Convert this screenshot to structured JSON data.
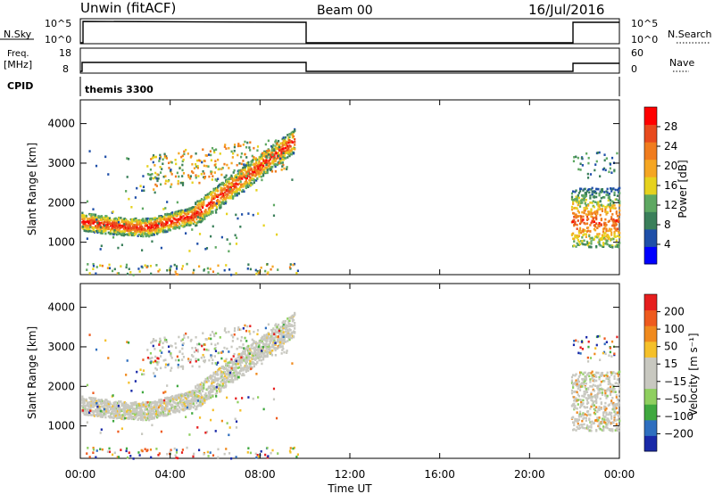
{
  "header": {
    "station": "Unwin (fitACF)",
    "beam": "Beam 00",
    "date": "16/Jul/2016"
  },
  "top_panels": {
    "nsky_label": "N.Sky",
    "nsky_ticks": [
      "10^5",
      "10^0"
    ],
    "nsearch_label": "N.Search",
    "nsearch_ticks": [
      "10^5",
      "10^0"
    ],
    "freq_label": "Freq.",
    "freq_unit": "[MHz]",
    "freq_ticks": [
      "18",
      "8"
    ],
    "nave_label": "Nave",
    "nave_ticks": [
      "60",
      "0"
    ],
    "cpid_label": "CPID",
    "cpid_value": "themis 3300"
  },
  "colors": {
    "power": [
      "#0000ff",
      "#1f4fa8",
      "#3a7f5a",
      "#5ea862",
      "#e6d21e",
      "#f5a623",
      "#f07c1e",
      "#e84a1e",
      "#ff0000"
    ],
    "velocity": [
      "#1a2aa8",
      "#2f6fbf",
      "#3fa83f",
      "#8fcf5f",
      "#c8c8c0",
      "#c8c8c0",
      "#f5c02a",
      "#f08a1e",
      "#ee5a1e",
      "#e61e1e"
    ],
    "grey": "#c8c8c0"
  },
  "chart_data": [
    {
      "type": "heatmap",
      "name": "power",
      "xlabel": "",
      "ylabel": "Slant Range [km]",
      "xlim": [
        0,
        24
      ],
      "ylim": [
        180,
        4600
      ],
      "yticks": [
        "4000",
        "3000",
        "2000",
        "1000"
      ],
      "ytick_values": [
        4000,
        3000,
        2000,
        1000
      ],
      "colorbar_label": "Power [dB]",
      "colorbar_ticks": [
        "28",
        "24",
        "20",
        "16",
        "12",
        "8",
        "4"
      ],
      "colorbar_range": [
        0,
        32
      ],
      "coverage_hours": [
        [
          0,
          10
        ],
        [
          21.8,
          24
        ]
      ]
    },
    {
      "type": "heatmap",
      "name": "velocity",
      "xlabel": "Time UT",
      "ylabel": "Slant Range [km]",
      "xlim": [
        0,
        24
      ],
      "ylim": [
        180,
        4600
      ],
      "xticks": [
        "00:00",
        "04:00",
        "08:00",
        "12:00",
        "16:00",
        "20:00",
        "00:00"
      ],
      "yticks": [
        "4000",
        "3000",
        "2000",
        "1000"
      ],
      "ytick_values": [
        4000,
        3000,
        2000,
        1000
      ],
      "colorbar_label": "Velocity [m s⁻¹]",
      "colorbar_ticks": [
        "200",
        "100",
        "50",
        "15",
        "−15",
        "−50",
        "−100",
        "−200"
      ],
      "coverage_hours": [
        [
          0,
          10
        ],
        [
          21.8,
          24
        ]
      ]
    }
  ]
}
